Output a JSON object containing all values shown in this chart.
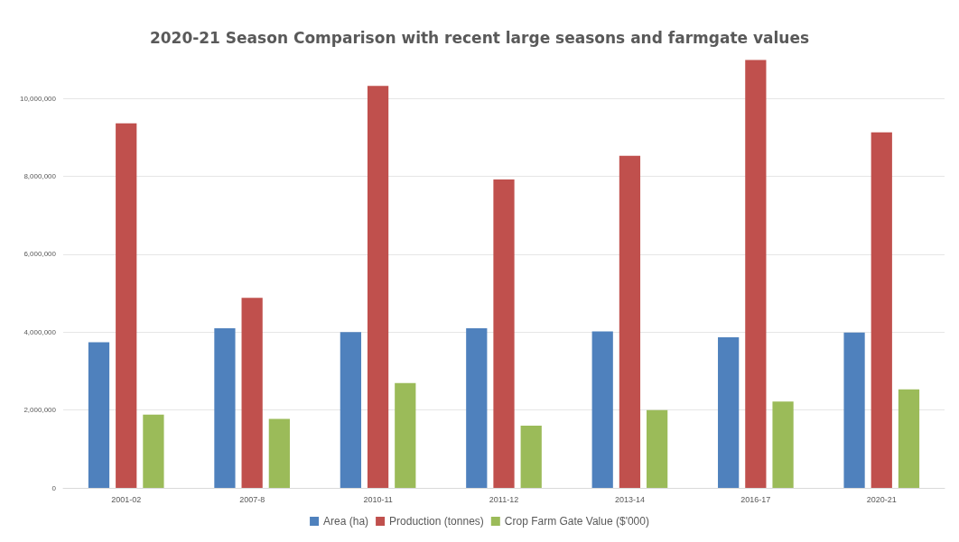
{
  "chart_data": {
    "type": "bar",
    "title": "2020-21 Season Comparison with recent large seasons and farmgate values",
    "categories": [
      "2001-02",
      "2007-8",
      "2010-11",
      "2011-12",
      "2013-14",
      "2016-17",
      "2020-21"
    ],
    "series": [
      {
        "name": "Area (ha)",
        "color": "#4f81bd",
        "values": [
          3740000,
          4100000,
          4000000,
          4100000,
          4020000,
          3870000,
          3990000
        ]
      },
      {
        "name": "Production (tonnes)",
        "color": "#c0504d",
        "values": [
          9360000,
          4880000,
          10320000,
          7920000,
          8530000,
          10990000,
          9130000
        ]
      },
      {
        "name": "Crop Farm Gate Value ($'000)",
        "color": "#9bbb59",
        "values": [
          1880000,
          1770000,
          2690000,
          1600000,
          2000000,
          2220000,
          2530000
        ]
      }
    ],
    "ylim": [
      0,
      11000000
    ],
    "yticks": [
      {
        "value": 0,
        "label": "0"
      },
      {
        "value": 2000000,
        "label": "2,000,000"
      },
      {
        "value": 4000000,
        "label": "4,000,000"
      },
      {
        "value": 6000000,
        "label": "6,000,000"
      },
      {
        "value": 8000000,
        "label": "8,000,000"
      },
      {
        "value": 10000000,
        "label": "10,000,000"
      }
    ],
    "grid": "y",
    "legend": "bottom"
  }
}
